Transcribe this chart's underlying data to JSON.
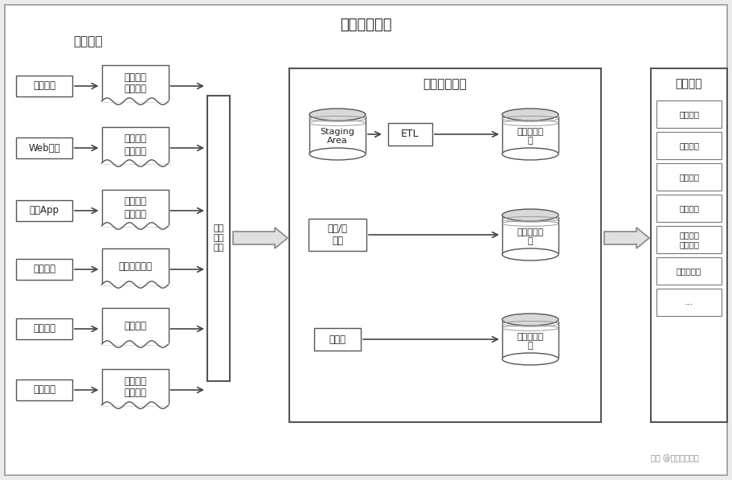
{
  "title": "大数据流程图",
  "section_label": "数据产生",
  "left_sources": [
    "业务系统",
    "Web系统",
    "手机App",
    "外部系统",
    "人工整理",
    "业务系统"
  ],
  "left_docs": [
    "埋点日志\n数据文件",
    "埋点日志\n数据文件",
    "埋点日志\n数据文件",
    "爬虫、外部购",
    "手工文件",
    "埋点日志\n数据文件"
  ],
  "collect_label": "数据\n采集\n传输",
  "storage_title": "数据存储处理",
  "staging_label": "Staging\nArea",
  "etl_label": "ETL",
  "offline_label": "离线数据存\n储",
  "batch_label": "微批/流\n处理",
  "nearline_label": "近线数据存\n储",
  "stream_label": "流处理",
  "realtime_label": "实时数据存\n储",
  "app_title": "数据应用",
  "app_items": [
    "报表展示",
    "数据分析",
    "即席分析",
    "数据挖掘",
    "机器学习\n深度学习",
    "数据在线服",
    "..."
  ],
  "watermark": "头条 @消防产业智库"
}
